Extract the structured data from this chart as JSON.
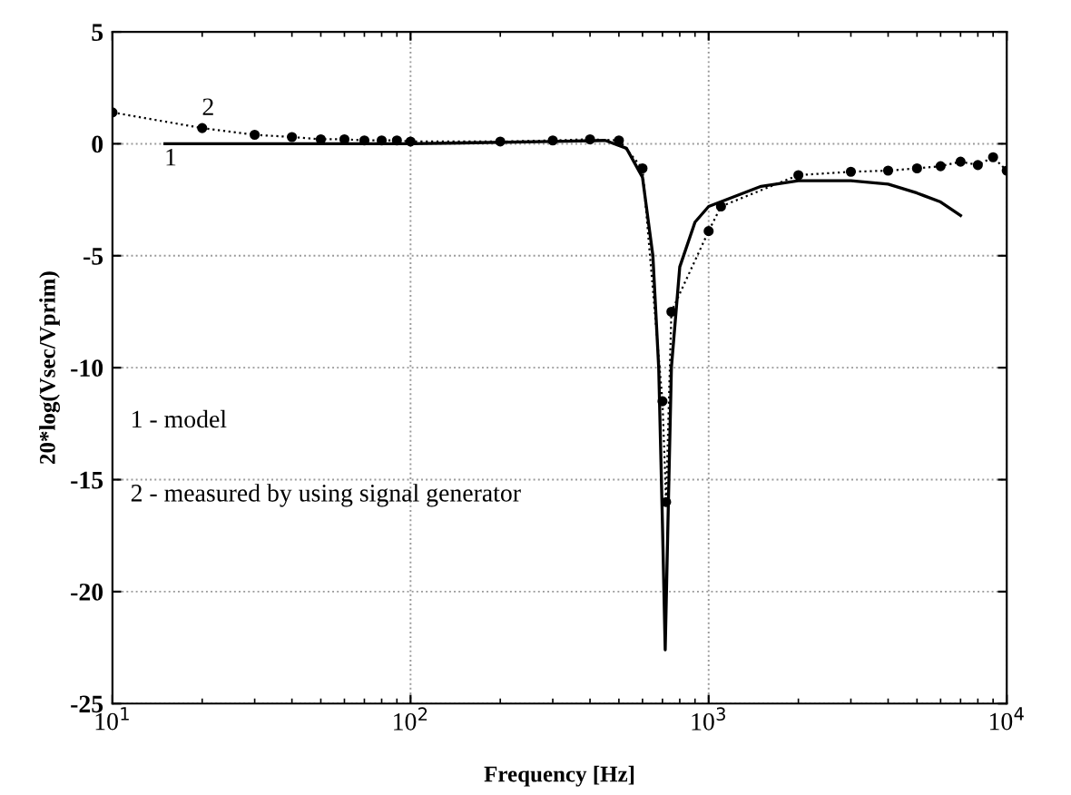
{
  "chart_data": {
    "type": "line",
    "xlabel": "Frequency [Hz]",
    "ylabel": "20*log(Vsec/Vprim)",
    "log": "x",
    "xlim": [
      10,
      10000
    ],
    "ylim": [
      -25,
      5
    ],
    "xticks": [
      {
        "value": 10,
        "label": "10$^{1}$"
      },
      {
        "value": 100,
        "label": "10$^{2}$"
      },
      {
        "value": 1000,
        "label": "10$^{3}$"
      },
      {
        "value": 10000,
        "label": "10$^{4}$"
      }
    ],
    "yticks": [
      -25,
      -20,
      -15,
      -10,
      -5,
      0,
      5
    ],
    "grid": true,
    "series": [
      {
        "color": "#000000",
        "marker": "none",
        "line_style": "solid",
        "x": [
          15,
          100,
          300,
          450,
          530,
          600,
          650,
          680,
          700,
          715,
          730,
          750,
          800,
          900,
          1000,
          1500,
          2000,
          3000,
          4000,
          5000,
          6000,
          7000
        ],
        "values": [
          0,
          0,
          0.1,
          0.15,
          -0.2,
          -1.5,
          -5,
          -10,
          -17,
          -22.6,
          -17,
          -10,
          -5.5,
          -3.5,
          -2.8,
          -1.9,
          -1.65,
          -1.65,
          -1.8,
          -2.2,
          -2.6,
          -3.2
        ]
      },
      {
        "color": "#000000",
        "marker": "circle",
        "line_style": "dotted",
        "x": [
          10,
          20,
          30,
          40,
          50,
          60,
          70,
          80,
          90,
          100,
          200,
          300,
          400,
          500,
          600,
          700,
          720,
          750,
          1000,
          1100,
          2000,
          3000,
          4000,
          5000,
          6000,
          7000,
          8000,
          9000,
          10000
        ],
        "values": [
          1.4,
          0.7,
          0.4,
          0.3,
          0.2,
          0.2,
          0.15,
          0.15,
          0.15,
          0.1,
          0.1,
          0.15,
          0.2,
          0.15,
          -1.1,
          -11.5,
          -16,
          -7.5,
          -3.9,
          -2.8,
          -1.4,
          -1.25,
          -1.2,
          -1.1,
          -1.0,
          -0.8,
          -0.95,
          -0.6,
          -1.2
        ]
      }
    ],
    "annotations": [
      "1",
      "2",
      "1 - model",
      "2 - measured by using signal generator"
    ]
  }
}
